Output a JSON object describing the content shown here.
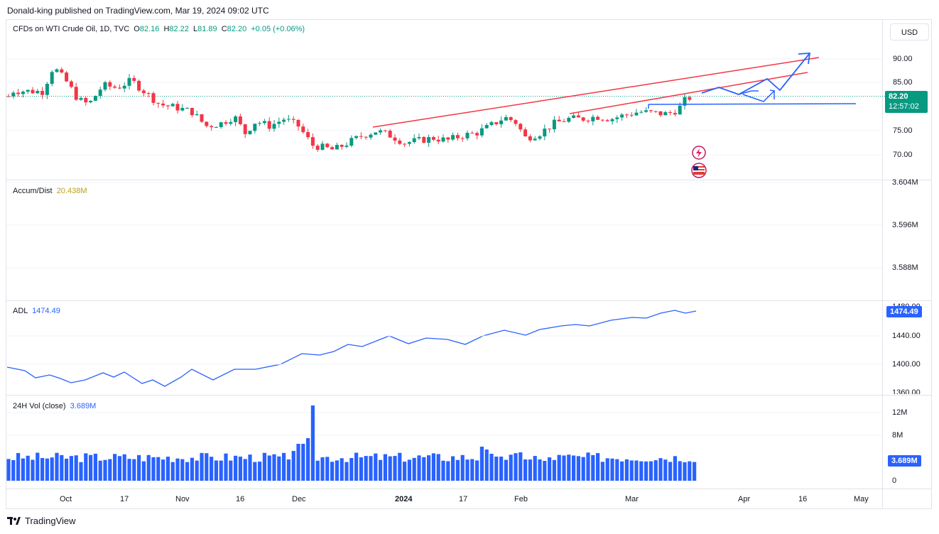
{
  "publisher": "Donald-king published on TradingView.com, Mar 19, 2024 09:02 UTC",
  "currency_button": "USD",
  "price_legend": {
    "symbol": "CFDs on WTI Crude Oil, 1D, TVC",
    "o_label": "O",
    "o": "82.16",
    "h_label": "H",
    "h": "82.22",
    "l_label": "L",
    "l": "81.89",
    "c_label": "C",
    "c": "82.20",
    "change": "+0.05 (+0.06%)"
  },
  "price_axis": [
    "90.00",
    "85.00",
    "75.00",
    "70.00"
  ],
  "price_tag": {
    "value": "82.20",
    "countdown": "12:57:02",
    "color": "#089981"
  },
  "accum": {
    "label": "Accum/Dist",
    "value": "20.438M",
    "value_color": "#b7a21a",
    "axis": [
      "3.604M",
      "3.596M",
      "3.588M"
    ]
  },
  "adl": {
    "label": "ADL",
    "value": "1474.49",
    "tag": "1474.49",
    "axis": [
      "1480.00",
      "1440.00",
      "1400.00",
      "1360.00"
    ]
  },
  "volume": {
    "label": "24H Vol (close)",
    "value": "3.689M",
    "tag": "3.689M",
    "axis": [
      "12M",
      "8M",
      "0"
    ]
  },
  "time_axis": [
    "Oct",
    "17",
    "Nov",
    "16",
    "Dec",
    "2024",
    "17",
    "Feb",
    "Mar",
    "Apr",
    "16",
    "May"
  ],
  "footer": "TradingView",
  "colors": {
    "up": "#089981",
    "down": "#f23645",
    "trend": "#f23645",
    "projection": "#2962ff",
    "adl_line": "#2962ff",
    "volume": "#2962ff"
  },
  "icons": [
    "tradingview-logo-icon",
    "lightning-event-icon",
    "us-flag-event-icon"
  ]
}
